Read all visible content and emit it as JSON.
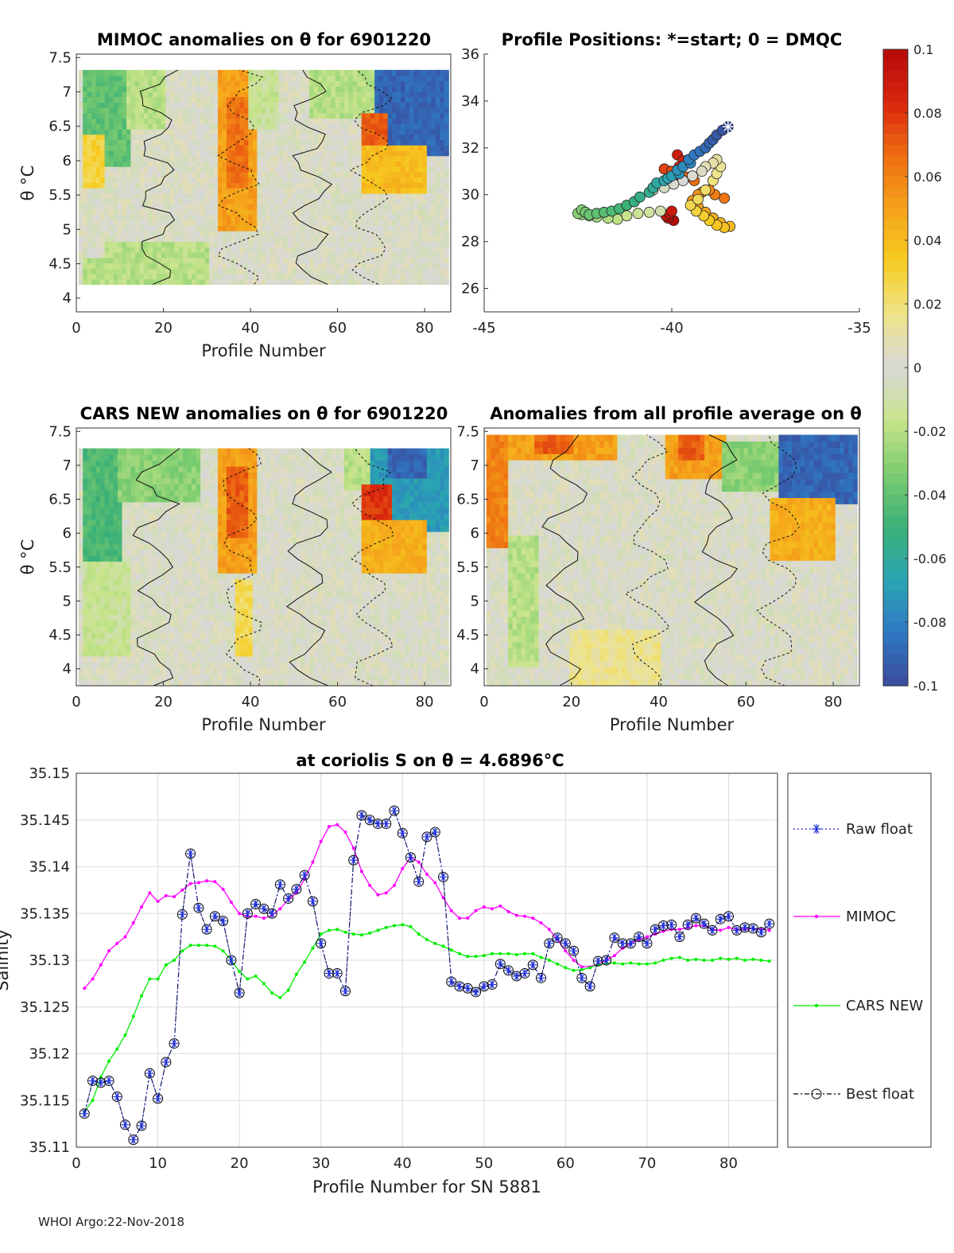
{
  "footer": "WHOI Argo:22-Nov-2018",
  "colors": {
    "raw": "#1f2fd6",
    "mimoc": "#ff00ff",
    "cars": "#00ee00",
    "best": "#000000",
    "colormap": [
      "#3b4b9c",
      "#2f78c2",
      "#2aa5b3",
      "#3bb077",
      "#7ccc6f",
      "#c8e48a",
      "#d8d8d8",
      "#eee48a",
      "#f6cc20",
      "#f5a21a",
      "#ee6d12",
      "#d9260e",
      "#b50a0a"
    ]
  },
  "chart_data": [
    {
      "id": "mimoc-section",
      "type": "heatmap",
      "title": "MIMOC anomalies on θ  for 6901220",
      "xlabel": "Profile Number",
      "ylabel": "θ °C",
      "xlim": [
        0,
        86
      ],
      "ylim": [
        3.8,
        7.55
      ],
      "xticks": [
        "0",
        "20",
        "40",
        "60",
        "80"
      ],
      "yticks": [
        "4",
        "4.5",
        "5",
        "5.5",
        "6",
        "6.5",
        "7",
        "7.5"
      ],
      "theta_top": 7.32,
      "theta_bottom": 4.2,
      "patches": [
        {
          "x0": 2,
          "x1": 12,
          "t0": 5.9,
          "t1": 7.32,
          "v": -0.04
        },
        {
          "x0": 2,
          "x1": 6,
          "t0": 5.6,
          "t1": 6.4,
          "v": 0.03
        },
        {
          "x0": 12,
          "x1": 20,
          "t0": 6.5,
          "t1": 7.32,
          "v": -0.02
        },
        {
          "x0": 33,
          "x1": 41,
          "t0": 5.0,
          "t1": 7.3,
          "v": 0.05
        },
        {
          "x0": 35,
          "x1": 39,
          "t0": 5.6,
          "t1": 6.9,
          "v": 0.065
        },
        {
          "x0": 40,
          "x1": 46,
          "t0": 6.5,
          "t1": 7.32,
          "v": -0.015
        },
        {
          "x0": 54,
          "x1": 68,
          "t0": 6.6,
          "t1": 7.32,
          "v": -0.02
        },
        {
          "x0": 69,
          "x1": 85,
          "t0": 6.1,
          "t1": 7.32,
          "v": -0.09
        },
        {
          "x0": 66,
          "x1": 71,
          "t0": 5.8,
          "t1": 6.7,
          "v": 0.07
        },
        {
          "x0": 66,
          "x1": 80,
          "t0": 5.5,
          "t1": 6.2,
          "v": 0.04
        },
        {
          "x0": 7,
          "x1": 30,
          "t0": 4.2,
          "t1": 4.8,
          "v": -0.02
        },
        {
          "x0": 2,
          "x1": 9,
          "t0": 4.2,
          "t1": 4.6,
          "v": -0.02
        }
      ]
    },
    {
      "id": "profile-positions",
      "type": "scatter",
      "title": "Profile Positions: *=start; 0 = DMQC",
      "xlim": [
        -45,
        -35
      ],
      "ylim": [
        25,
        36
      ],
      "xticks": [
        "-45",
        "-40",
        "-35"
      ],
      "yticks": [
        "26",
        "28",
        "30",
        "32",
        "34",
        "36"
      ],
      "lon": [
        -38.5,
        -38.65,
        -38.8,
        -38.9,
        -39.0,
        -39.1,
        -39.25,
        -39.4,
        -39.55,
        -39.5,
        -39.7,
        -39.85,
        -39.8,
        -40.0,
        -40.1,
        -40.2,
        -40.4,
        -40.5,
        -40.6,
        -40.85,
        -41.0,
        -41.2,
        -41.4,
        -41.6,
        -41.8,
        -42.0,
        -42.2,
        -42.3,
        -42.4,
        -42.5,
        -42.4,
        -42.2,
        -42.0,
        -41.7,
        -41.45,
        -41.2,
        -40.9,
        -40.6,
        -40.3,
        -40.5,
        -40.2,
        -39.95,
        -39.7,
        -39.45,
        -39.2,
        -39.1,
        -38.9,
        -38.8,
        -38.7,
        -38.8,
        -38.9,
        -39.1,
        -39.3,
        -39.5,
        -39.35,
        -39.15,
        -39.0,
        -38.8,
        -38.6,
        -38.45,
        -38.7,
        -38.9,
        -39.1,
        -39.3,
        -39.45,
        -39.3,
        -39.2,
        -39.0,
        -38.85,
        -38.6,
        -39.4,
        -39.6,
        -39.8,
        -40.0,
        -40.2,
        -40.1,
        -39.95,
        -39.8,
        -39.7,
        -39.85,
        -40.0,
        -40.05,
        -40.15,
        -40.1,
        -39.95
      ],
      "lat": [
        32.9,
        32.75,
        32.55,
        32.35,
        32.2,
        32.0,
        31.85,
        31.7,
        31.5,
        31.35,
        31.2,
        31.05,
        30.9,
        30.8,
        30.7,
        30.6,
        30.5,
        30.3,
        30.1,
        29.9,
        29.7,
        29.55,
        29.4,
        29.3,
        29.25,
        29.2,
        29.15,
        29.25,
        29.35,
        29.2,
        29.15,
        29.1,
        29.05,
        29.0,
        28.95,
        29.1,
        29.2,
        29.25,
        29.3,
        30.2,
        30.3,
        30.45,
        30.6,
        30.8,
        31.0,
        31.2,
        31.35,
        31.5,
        31.2,
        30.9,
        30.6,
        30.2,
        29.8,
        29.55,
        29.3,
        29.1,
        28.9,
        28.7,
        28.6,
        28.65,
        28.8,
        29.0,
        29.25,
        29.5,
        29.75,
        30.0,
        30.1,
        30.2,
        30.0,
        29.85,
        30.6,
        30.75,
        30.85,
        31.0,
        31.1,
        31.0,
        30.9,
        31.2,
        31.45,
        31.7,
        29.3,
        29.2,
        29.1,
        29.0,
        28.9
      ]
    },
    {
      "id": "colorbar",
      "type": "heatmap",
      "clim": [
        -0.1,
        0.1
      ],
      "ticks": [
        "0.1",
        "0.08",
        "0.06",
        "0.04",
        "0.02",
        "0",
        "-0.02",
        "-0.04",
        "-0.06",
        "-0.08",
        "-0.1"
      ]
    },
    {
      "id": "cars-section",
      "type": "heatmap",
      "title": "CARS NEW anomalies on θ for 6901220",
      "xlabel": "Profile Number",
      "ylabel": "θ °C",
      "xlim": [
        0,
        86
      ],
      "ylim": [
        3.75,
        7.55
      ],
      "xticks": [
        "0",
        "20",
        "40",
        "60",
        "80"
      ],
      "yticks": [
        "4",
        "4.5",
        "5",
        "5.5",
        "6",
        "6.5",
        "7",
        "7.5"
      ],
      "theta_top": 7.25,
      "theta_bottom": 3.75,
      "patches": [
        {
          "x0": 2,
          "x1": 10,
          "t0": 5.6,
          "t1": 7.25,
          "v": -0.045
        },
        {
          "x0": 10,
          "x1": 28,
          "t0": 6.5,
          "t1": 7.25,
          "v": -0.03
        },
        {
          "x0": 2,
          "x1": 12,
          "t0": 4.2,
          "t1": 5.6,
          "v": -0.015
        },
        {
          "x0": 33,
          "x1": 41,
          "t0": 5.4,
          "t1": 7.55,
          "v": 0.05
        },
        {
          "x0": 35,
          "x1": 39,
          "t0": 5.9,
          "t1": 7.0,
          "v": 0.07
        },
        {
          "x0": 37,
          "x1": 40,
          "t0": 4.2,
          "t1": 5.3,
          "v": 0.025
        },
        {
          "x0": 62,
          "x1": 70,
          "t0": 6.6,
          "t1": 7.4,
          "v": -0.02
        },
        {
          "x0": 68,
          "x1": 85,
          "t0": 6.0,
          "t1": 7.55,
          "v": -0.07
        },
        {
          "x0": 72,
          "x1": 80,
          "t0": 6.8,
          "t1": 7.55,
          "v": -0.09
        },
        {
          "x0": 66,
          "x1": 72,
          "t0": 5.8,
          "t1": 6.7,
          "v": 0.08
        },
        {
          "x0": 66,
          "x1": 80,
          "t0": 5.4,
          "t1": 6.2,
          "v": 0.045
        }
      ]
    },
    {
      "id": "anomaly-average-section",
      "type": "heatmap",
      "title": "Anomalies from all profile average on θ",
      "xlabel": "Profile Number",
      "ylabel": "",
      "xlim": [
        0,
        86
      ],
      "ylim": [
        3.75,
        7.55
      ],
      "xticks": [
        "0",
        "20",
        "40",
        "60",
        "80"
      ],
      "yticks": [
        "4",
        "4.5",
        "5",
        "5.5",
        "6",
        "6.5",
        "7",
        "7.5"
      ],
      "theta_top": 7.45,
      "theta_bottom": 3.75,
      "patches": [
        {
          "x0": 1,
          "x1": 5,
          "t0": 5.8,
          "t1": 7.45,
          "v": 0.06
        },
        {
          "x0": 6,
          "x1": 30,
          "t0": 7.05,
          "t1": 7.45,
          "v": 0.05
        },
        {
          "x0": 12,
          "x1": 20,
          "t0": 7.2,
          "t1": 7.45,
          "v": 0.07
        },
        {
          "x0": 42,
          "x1": 55,
          "t0": 6.8,
          "t1": 7.45,
          "v": 0.05
        },
        {
          "x0": 45,
          "x1": 50,
          "t0": 7.1,
          "t1": 7.45,
          "v": 0.07
        },
        {
          "x0": 55,
          "x1": 68,
          "t0": 6.6,
          "t1": 7.4,
          "v": -0.03
        },
        {
          "x0": 68,
          "x1": 85,
          "t0": 6.4,
          "t1": 7.45,
          "v": -0.09
        },
        {
          "x0": 66,
          "x1": 80,
          "t0": 5.6,
          "t1": 6.5,
          "v": 0.045
        },
        {
          "x0": 6,
          "x1": 12,
          "t0": 4.0,
          "t1": 6.0,
          "v": -0.02
        },
        {
          "x0": 20,
          "x1": 40,
          "t0": 3.75,
          "t1": 4.6,
          "v": 0.015
        }
      ]
    },
    {
      "id": "salinity-timeseries",
      "type": "line",
      "title": "at coriolis S on θ = 4.6896°C",
      "xlabel": "Profile Number for SN 5881",
      "ylabel": "Salinity",
      "xlim": [
        0,
        86
      ],
      "ylim": [
        35.11,
        35.15
      ],
      "xticks": [
        "0",
        "10",
        "20",
        "30",
        "40",
        "50",
        "60",
        "70",
        "80"
      ],
      "yticks": [
        "35.11",
        "35.115",
        "35.12",
        "35.125",
        "35.13",
        "35.135",
        "35.14",
        "35.145",
        "35.15"
      ],
      "x": [
        1,
        2,
        3,
        4,
        5,
        6,
        7,
        8,
        9,
        10,
        11,
        12,
        13,
        14,
        15,
        16,
        17,
        18,
        19,
        20,
        21,
        22,
        23,
        24,
        25,
        26,
        27,
        28,
        29,
        30,
        31,
        32,
        33,
        34,
        35,
        36,
        37,
        38,
        39,
        40,
        41,
        42,
        43,
        44,
        45,
        46,
        47,
        48,
        49,
        50,
        51,
        52,
        53,
        54,
        55,
        56,
        57,
        58,
        59,
        60,
        61,
        62,
        63,
        64,
        65,
        66,
        67,
        68,
        69,
        70,
        71,
        72,
        73,
        74,
        75,
        76,
        77,
        78,
        79,
        80,
        81,
        82,
        83,
        84,
        85
      ],
      "series": [
        {
          "name": "Raw float",
          "style": "dotted-star",
          "values": [
            35.1136,
            35.1171,
            35.1169,
            35.1171,
            35.1154,
            35.1124,
            35.1108,
            35.1123,
            35.1179,
            35.1152,
            35.1191,
            35.1211,
            35.1349,
            35.1414,
            35.1356,
            35.1333,
            35.1347,
            35.1342,
            35.13,
            35.1265,
            35.135,
            35.136,
            35.1355,
            35.135,
            35.1381,
            35.1366,
            35.1376,
            35.1391,
            35.1363,
            35.1318,
            35.1286,
            35.1286,
            35.1267,
            35.1407,
            35.1455,
            35.145,
            35.1446,
            35.1446,
            35.146,
            35.1436,
            35.141,
            35.1384,
            35.1432,
            35.1437,
            35.1389,
            35.1277,
            35.1272,
            35.127,
            35.1266,
            35.1272,
            35.1274,
            35.1296,
            35.1289,
            35.1283,
            35.1286,
            35.1295,
            35.1281,
            35.1318,
            35.1324,
            35.1318,
            35.131,
            35.1281,
            35.1272,
            35.1299,
            35.13,
            35.1324,
            35.1318,
            35.1318,
            35.1325,
            35.1318,
            35.1333,
            35.1337,
            35.1338,
            35.1325,
            35.1338,
            35.1345,
            35.1339,
            35.1332,
            35.1344,
            35.1347,
            35.1332,
            35.1335,
            35.1334,
            35.133,
            35.1339
          ]
        },
        {
          "name": "MIMOC",
          "style": "dot-line",
          "values": [
            35.127,
            35.128,
            35.1295,
            35.131,
            35.1318,
            35.1325,
            35.134,
            35.1357,
            35.1372,
            35.1363,
            35.1369,
            35.1368,
            35.1375,
            35.1382,
            35.1383,
            35.1385,
            35.1384,
            35.1376,
            35.1362,
            35.135,
            35.1347,
            35.1347,
            35.1345,
            35.1348,
            35.1355,
            35.1365,
            35.1372,
            35.1387,
            35.1405,
            35.1427,
            35.1443,
            35.1445,
            35.1437,
            35.142,
            35.1395,
            35.138,
            35.137,
            35.1372,
            35.138,
            35.1398,
            35.141,
            35.1405,
            35.1392,
            35.1383,
            35.1367,
            35.1353,
            35.1345,
            35.1345,
            35.1353,
            35.1357,
            35.1355,
            35.1358,
            35.1352,
            35.1348,
            35.1347,
            35.1345,
            35.134,
            35.1333,
            35.1322,
            35.131,
            35.13,
            35.1293,
            35.1293,
            35.1296,
            35.13,
            35.1305,
            35.1313,
            35.1318,
            35.1322,
            35.1325,
            35.1328,
            35.1331,
            35.1333,
            35.1333,
            35.1335,
            35.1337,
            35.1337,
            35.1333,
            35.1332,
            35.1335,
            35.1333,
            35.1333,
            35.1334,
            35.1333,
            35.1332
          ]
        },
        {
          "name": "CARS NEW",
          "style": "dot-line",
          "values": [
            35.1138,
            35.115,
            35.1175,
            35.1192,
            35.1205,
            35.122,
            35.124,
            35.1262,
            35.128,
            35.128,
            35.1295,
            35.13,
            35.131,
            35.1316,
            35.1316,
            35.1316,
            35.1315,
            35.131,
            35.13,
            35.1288,
            35.128,
            35.1283,
            35.1275,
            35.1265,
            35.126,
            35.1268,
            35.1285,
            35.1298,
            35.1313,
            35.1328,
            35.1332,
            35.1333,
            35.133,
            35.1328,
            35.1327,
            35.1329,
            35.1332,
            35.1335,
            35.1337,
            35.1338,
            35.1336,
            35.1328,
            35.1322,
            35.1318,
            35.1315,
            35.1311,
            35.1307,
            35.1304,
            35.1304,
            35.1305,
            35.1307,
            35.1307,
            35.1307,
            35.1306,
            35.1307,
            35.1307,
            35.1303,
            35.13,
            35.1296,
            35.1292,
            35.1289,
            35.129,
            35.1292,
            35.1295,
            35.1297,
            35.1297,
            35.1296,
            35.1297,
            35.1296,
            35.1296,
            35.1297,
            35.13,
            35.1302,
            35.1303,
            35.13,
            35.1301,
            35.13,
            35.13,
            35.1302,
            35.1301,
            35.1302,
            35.13,
            35.1301,
            35.13,
            35.1299
          ]
        },
        {
          "name": "Best float",
          "style": "dashdot-circle",
          "values": [
            35.1136,
            35.1171,
            35.1169,
            35.1171,
            35.1154,
            35.1124,
            35.1108,
            35.1123,
            35.1179,
            35.1152,
            35.1191,
            35.1211,
            35.1349,
            35.1414,
            35.1356,
            35.1333,
            35.1347,
            35.1342,
            35.13,
            35.1265,
            35.135,
            35.136,
            35.1355,
            35.135,
            35.1381,
            35.1366,
            35.1376,
            35.1391,
            35.1363,
            35.1318,
            35.1286,
            35.1286,
            35.1267,
            35.1407,
            35.1455,
            35.145,
            35.1446,
            35.1446,
            35.146,
            35.1436,
            35.141,
            35.1384,
            35.1432,
            35.1437,
            35.1389,
            35.1277,
            35.1272,
            35.127,
            35.1266,
            35.1272,
            35.1274,
            35.1296,
            35.1289,
            35.1283,
            35.1286,
            35.1295,
            35.1281,
            35.1318,
            35.1324,
            35.1318,
            35.131,
            35.1281,
            35.1272,
            35.1299,
            35.13,
            35.1324,
            35.1318,
            35.1318,
            35.1325,
            35.1318,
            35.1333,
            35.1337,
            35.1338,
            35.1325,
            35.1338,
            35.1345,
            35.1339,
            35.1332,
            35.1344,
            35.1347,
            35.1332,
            35.1335,
            35.1334,
            35.133,
            35.1339
          ]
        }
      ]
    }
  ]
}
